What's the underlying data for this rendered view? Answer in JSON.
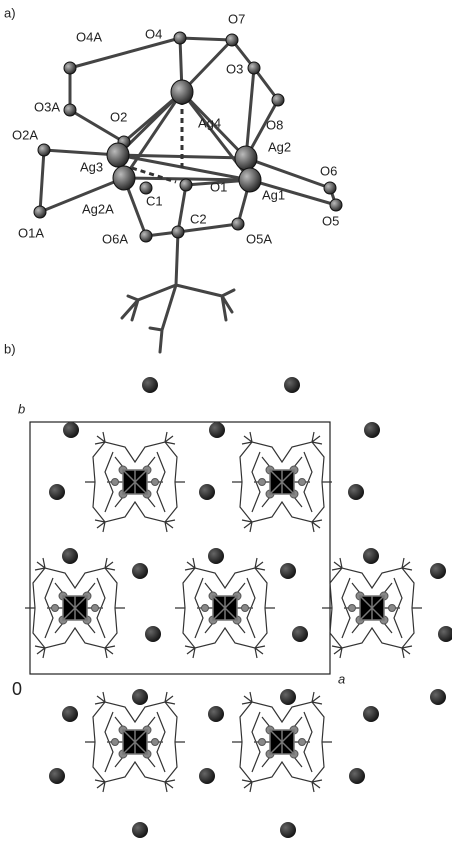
{
  "panel_a": {
    "label": "a)",
    "atoms": [
      "O4",
      "O7",
      "O4A",
      "O3",
      "Ag4",
      "O8",
      "O3A",
      "O2",
      "O2A",
      "Ag3",
      "Ag2",
      "O6",
      "C1",
      "O1",
      "Ag1",
      "O5",
      "O1A",
      "Ag2A",
      "C2",
      "O6A",
      "O5A"
    ]
  },
  "panel_b": {
    "label": "b)",
    "axis_b": "b",
    "axis_a": "a",
    "origin": "0"
  }
}
